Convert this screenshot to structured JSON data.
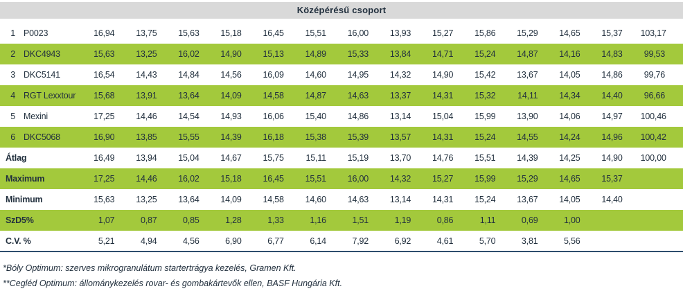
{
  "title": "Középérésű csoport",
  "table": {
    "rows": [
      {
        "type": "variety",
        "rank": "1",
        "name": "P0023",
        "highlight": false,
        "values": [
          "16,94",
          "13,75",
          "15,63",
          "15,18",
          "16,45",
          "15,51",
          "16,00",
          "13,93",
          "15,27",
          "15,86",
          "15,29",
          "14,65",
          "15,37",
          "103,17"
        ]
      },
      {
        "type": "variety",
        "rank": "2",
        "name": "DKC4943",
        "highlight": true,
        "values": [
          "15,63",
          "13,25",
          "16,02",
          "14,90",
          "15,13",
          "14,89",
          "15,33",
          "13,84",
          "14,71",
          "15,24",
          "14,87",
          "14,16",
          "14,83",
          "99,53"
        ]
      },
      {
        "type": "variety",
        "rank": "3",
        "name": "DKC5141",
        "highlight": false,
        "values": [
          "16,54",
          "14,43",
          "14,84",
          "14,56",
          "16,09",
          "14,60",
          "14,95",
          "14,32",
          "14,90",
          "15,42",
          "13,67",
          "14,05",
          "14,86",
          "99,76"
        ]
      },
      {
        "type": "variety",
        "rank": "4",
        "name": "RGT Lexxtour",
        "highlight": true,
        "values": [
          "15,68",
          "13,91",
          "13,64",
          "14,09",
          "14,58",
          "14,87",
          "14,63",
          "13,37",
          "14,31",
          "15,32",
          "14,11",
          "14,34",
          "14,40",
          "96,66"
        ]
      },
      {
        "type": "variety",
        "rank": "5",
        "name": "Mexini",
        "highlight": false,
        "values": [
          "17,25",
          "14,46",
          "14,54",
          "14,93",
          "16,06",
          "15,40",
          "14,86",
          "13,14",
          "15,04",
          "15,99",
          "13,90",
          "14,06",
          "14,97",
          "100,46"
        ]
      },
      {
        "type": "variety",
        "rank": "6",
        "name": "DKC5068",
        "highlight": true,
        "values": [
          "16,90",
          "13,85",
          "15,55",
          "14,39",
          "16,18",
          "15,38",
          "15,39",
          "13,57",
          "14,31",
          "15,24",
          "14,55",
          "14,24",
          "14,96",
          "100,42"
        ]
      },
      {
        "type": "summary",
        "label": "Átlag",
        "highlight": false,
        "values": [
          "16,49",
          "13,94",
          "15,04",
          "14,67",
          "15,75",
          "15,11",
          "15,19",
          "13,70",
          "14,76",
          "15,51",
          "14,39",
          "14,25",
          "14,90",
          "100,00"
        ]
      },
      {
        "type": "summary",
        "label": "Maximum",
        "highlight": true,
        "values": [
          "17,25",
          "14,46",
          "16,02",
          "15,18",
          "16,45",
          "15,51",
          "16,00",
          "14,32",
          "15,27",
          "15,99",
          "15,29",
          "14,65",
          "15,37",
          ""
        ]
      },
      {
        "type": "summary",
        "label": "Minimum",
        "highlight": false,
        "values": [
          "15,63",
          "13,25",
          "13,64",
          "14,09",
          "14,58",
          "14,60",
          "14,63",
          "13,14",
          "14,31",
          "15,24",
          "13,67",
          "14,05",
          "14,40",
          ""
        ]
      },
      {
        "type": "summary",
        "label": "SzD5%",
        "highlight": true,
        "values": [
          "1,07",
          "0,87",
          "0,85",
          "1,28",
          "1,33",
          "1,16",
          "1,51",
          "1,19",
          "0,86",
          "1,11",
          "0,69",
          "1,00",
          "",
          ""
        ]
      },
      {
        "type": "summary",
        "label": "C.V. %",
        "highlight": false,
        "values": [
          "5,21",
          "4,94",
          "4,56",
          "6,90",
          "6,77",
          "6,14",
          "7,92",
          "6,92",
          "4,61",
          "5,70",
          "3,81",
          "5,56",
          "",
          ""
        ]
      }
    ]
  },
  "footnotes": [
    "*Bóly Optimum: szerves mikrogranulátum startertrágya kezelés, Gramen Kft.",
    "**Cegléd Optimum: állománykezelés rovar- és gombakártevők ellen, BASF Hungária Kft."
  ],
  "colors": {
    "highlight_row": "#a3c93c",
    "header_band": "#d9d9d9",
    "text": "#22303e",
    "bottom_border": "#2d4d6d"
  }
}
